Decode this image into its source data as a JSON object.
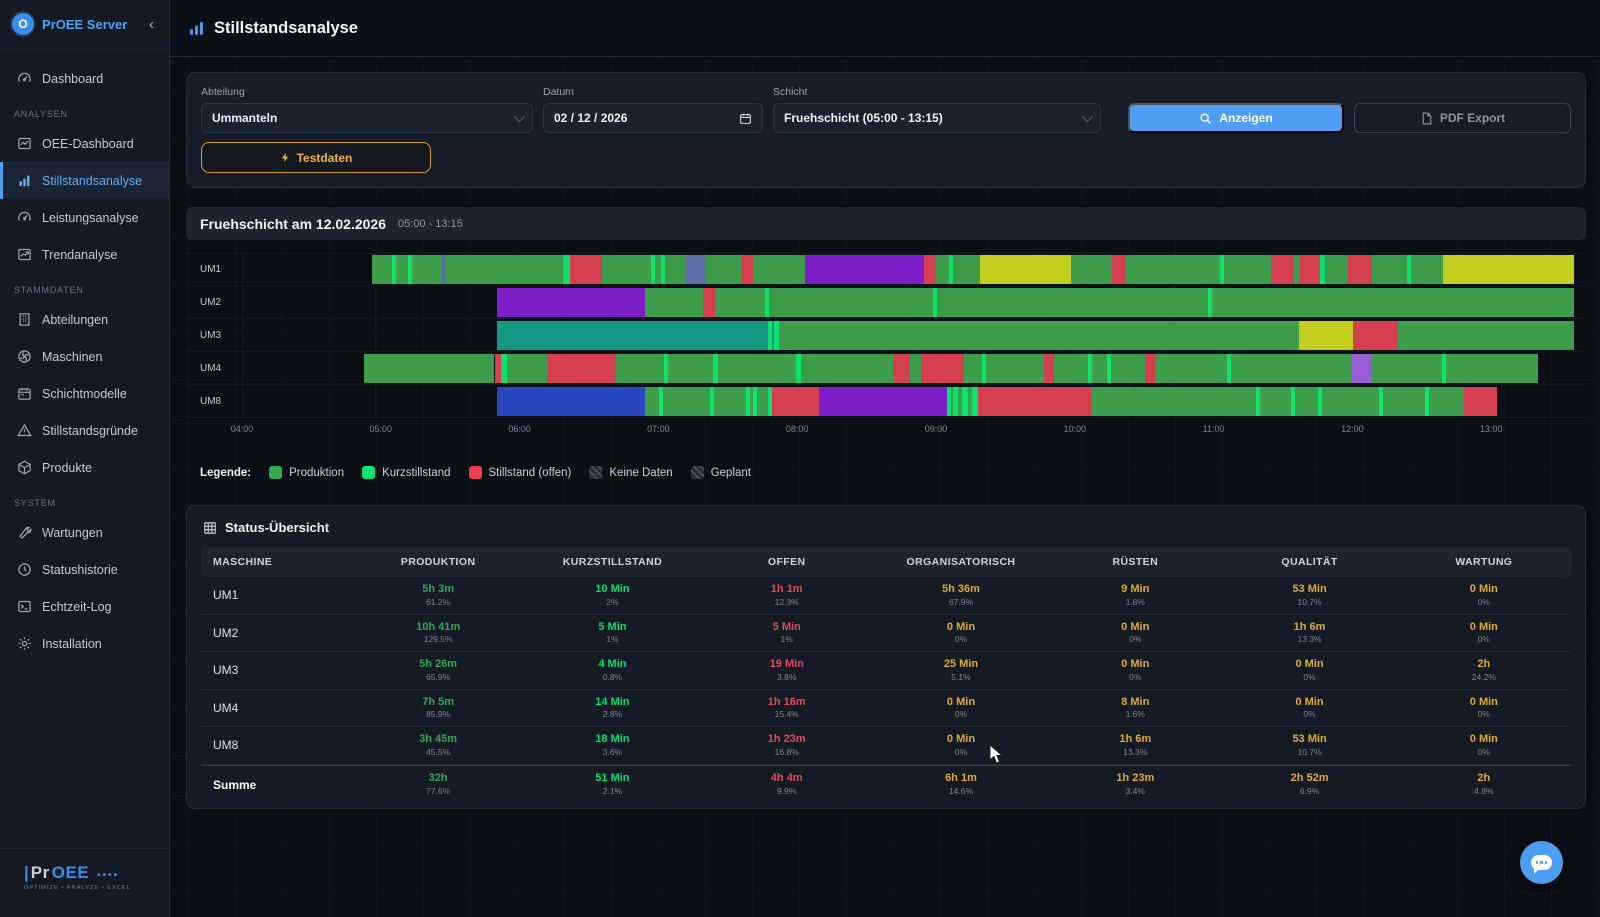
{
  "app": {
    "brand": "PrOEE Server",
    "collapse_glyph": "‹"
  },
  "sidebar": {
    "sections": [
      {
        "label": "",
        "items": [
          {
            "icon": "gauge",
            "label": "Dashboard",
            "active": false
          }
        ]
      },
      {
        "label": "ANALYSEN",
        "items": [
          {
            "icon": "line-chart",
            "label": "OEE-Dashboard",
            "active": false
          },
          {
            "icon": "bar-chart",
            "label": "Stillstandsanalyse",
            "active": true
          },
          {
            "icon": "gauge",
            "label": "Leistungsanalyse",
            "active": false
          },
          {
            "icon": "trend",
            "label": "Trendanalyse",
            "active": false
          }
        ]
      },
      {
        "label": "STAMMDATEN",
        "items": [
          {
            "icon": "building",
            "label": "Abteilungen",
            "active": false
          },
          {
            "icon": "fan",
            "label": "Maschinen",
            "active": false
          },
          {
            "icon": "calendar",
            "label": "Schichtmodelle",
            "active": false
          },
          {
            "icon": "warning",
            "label": "Stillstandsgründe",
            "active": false
          },
          {
            "icon": "box",
            "label": "Produkte",
            "active": false
          }
        ]
      },
      {
        "label": "SYSTEM",
        "items": [
          {
            "icon": "wrench",
            "label": "Wartungen",
            "active": false
          },
          {
            "icon": "clock",
            "label": "Statushistorie",
            "active": false
          },
          {
            "icon": "terminal",
            "label": "Echtzeit-Log",
            "active": false
          },
          {
            "icon": "gear",
            "label": "Installation",
            "active": false
          }
        ]
      }
    ],
    "footer": {
      "bar": "|",
      "name_gray": "Pr",
      "name_blue": "OEE",
      "dots": "••••",
      "tagline": "OPTIMIZE • ANALYZE • EXCEL"
    }
  },
  "header": {
    "title": "Stillstandsanalyse"
  },
  "filters": {
    "abteilung": {
      "label": "Abteilung",
      "value": "Ummanteln"
    },
    "datum": {
      "label": "Datum",
      "value": "02 / 12 / 2026"
    },
    "schicht": {
      "label": "Schicht",
      "value": "Fruehschicht (05:00 - 13:15)"
    },
    "anzeigen_label": "Anzeigen",
    "pdf_label": "PDF Export",
    "testdaten_label": "Testdaten"
  },
  "shift_header": {
    "title": "Fruehschicht am 12.02.2026",
    "times": "05:00 - 13:15"
  },
  "chart_data": {
    "type": "gantt-timeline",
    "time_window": {
      "start": "04:00",
      "end": "14:00"
    },
    "axis_ticks": [
      {
        "label": "04:00",
        "pct": 0
      },
      {
        "label": "05:00",
        "pct": 10
      },
      {
        "label": "06:00",
        "pct": 20
      },
      {
        "label": "07:00",
        "pct": 30
      },
      {
        "label": "08:00",
        "pct": 40
      },
      {
        "label": "09:00",
        "pct": 50
      },
      {
        "label": "10:00",
        "pct": 60
      },
      {
        "label": "11:00",
        "pct": 70
      },
      {
        "label": "12:00",
        "pct": 80
      },
      {
        "label": "13:00",
        "pct": 90
      }
    ],
    "status_colors": {
      "p": "#3d9d4a",
      "k": "#0be26e",
      "r": "#d4404f",
      "v": "#7d1ec8",
      "lv": "#9a5fd4",
      "t": "#14987f",
      "b": "#2946c0",
      "y": "#c2cf1f",
      "s": "#5e6da6"
    },
    "status_names": {
      "p": "produktion",
      "k": "kurzstillstand",
      "r": "stillstand-offen",
      "v": "violet-status",
      "lv": "light-violet-status",
      "t": "teal-status",
      "b": "blue-status",
      "y": "yellow-status",
      "s": "slate-status"
    },
    "machines": [
      {
        "name": "UM1",
        "segments": [
          [
            "p",
            10.7,
            12.2
          ],
          [
            "k",
            12.2,
            12.5
          ],
          [
            "p",
            12.5,
            13.4
          ],
          [
            "k",
            13.4,
            13.7
          ],
          [
            "p",
            13.7,
            15.9
          ],
          [
            "s",
            15.9,
            16.1
          ],
          [
            "p",
            16.1,
            24.9
          ],
          [
            "k",
            24.9,
            25.4
          ],
          [
            "r",
            25.4,
            27.8
          ],
          [
            "p",
            27.8,
            31.4
          ],
          [
            "k",
            31.4,
            31.7
          ],
          [
            "p",
            31.7,
            32.2
          ],
          [
            "k",
            32.2,
            32.5
          ],
          [
            "p",
            32.5,
            34.0
          ],
          [
            "s",
            34.0,
            35.5
          ],
          [
            "p",
            35.5,
            38.2
          ],
          [
            "r",
            38.2,
            39.0
          ],
          [
            "p",
            39.0,
            42.9
          ],
          [
            "v",
            42.9,
            51.7
          ],
          [
            "r",
            51.7,
            52.6
          ],
          [
            "p",
            52.6,
            53.6
          ],
          [
            "k",
            53.6,
            53.9
          ],
          [
            "p",
            53.9,
            55.9
          ],
          [
            "y",
            55.9,
            62.6
          ],
          [
            "p",
            62.6,
            65.7
          ],
          [
            "r",
            65.7,
            66.7
          ],
          [
            "p",
            66.7,
            73.7
          ],
          [
            "k",
            73.7,
            74.0
          ],
          [
            "p",
            74.0,
            77.5
          ],
          [
            "r",
            77.5,
            79.2
          ],
          [
            "p",
            79.2,
            79.6
          ],
          [
            "r",
            79.6,
            81.1
          ],
          [
            "k",
            81.1,
            81.5
          ],
          [
            "p",
            81.5,
            83.1
          ],
          [
            "r",
            83.1,
            85.0
          ],
          [
            "p",
            85.0,
            87.6
          ],
          [
            "k",
            87.6,
            87.9
          ],
          [
            "p",
            87.9,
            90.3
          ],
          [
            "y",
            90.3,
            100
          ]
        ]
      },
      {
        "name": "UM2",
        "segments": [
          [
            "v",
            20.0,
            31.0
          ],
          [
            "p",
            31.0,
            35.3
          ],
          [
            "r",
            35.3,
            36.2
          ],
          [
            "p",
            36.2,
            39.9
          ],
          [
            "k",
            39.9,
            40.2
          ],
          [
            "p",
            40.2,
            52.4
          ],
          [
            "k",
            52.4,
            52.7
          ],
          [
            "p",
            52.7,
            72.8
          ],
          [
            "k",
            72.8,
            73.1
          ],
          [
            "p",
            73.1,
            100
          ]
        ]
      },
      {
        "name": "UM3",
        "segments": [
          [
            "t",
            20.0,
            40.1
          ],
          [
            "k",
            40.1,
            40.4
          ],
          [
            "t",
            40.4,
            40.6
          ],
          [
            "k",
            40.6,
            40.9
          ],
          [
            "p",
            40.9,
            79.6
          ],
          [
            "y",
            79.6,
            83.6
          ],
          [
            "r",
            83.6,
            86.9
          ],
          [
            "p",
            86.9,
            100
          ]
        ]
      },
      {
        "name": "UM4",
        "segments": [
          [
            "p",
            10.1,
            19.8
          ],
          [
            "r",
            19.8,
            20.3
          ],
          [
            "k",
            20.3,
            20.7
          ],
          [
            "p",
            20.7,
            23.7
          ],
          [
            "r",
            23.7,
            28.8
          ],
          [
            "p",
            28.8,
            32.4
          ],
          [
            "k",
            32.4,
            32.7
          ],
          [
            "p",
            32.7,
            36.0
          ],
          [
            "k",
            36.0,
            36.4
          ],
          [
            "p",
            36.4,
            42.2
          ],
          [
            "k",
            42.2,
            42.6
          ],
          [
            "p",
            42.6,
            49.4
          ],
          [
            "r",
            49.4,
            50.7
          ],
          [
            "p",
            50.7,
            51.5
          ],
          [
            "r",
            51.5,
            54.7
          ],
          [
            "p",
            54.7,
            56.0
          ],
          [
            "k",
            56.0,
            56.3
          ],
          [
            "p",
            56.3,
            60.6
          ],
          [
            "r",
            60.6,
            61.4
          ],
          [
            "p",
            61.4,
            63.9
          ],
          [
            "k",
            63.9,
            64.2
          ],
          [
            "p",
            64.2,
            65.3
          ],
          [
            "k",
            65.3,
            65.6
          ],
          [
            "p",
            65.6,
            68.1
          ],
          [
            "r",
            68.1,
            68.9
          ],
          [
            "p",
            68.9,
            74.2
          ],
          [
            "k",
            74.2,
            74.5
          ],
          [
            "p",
            74.5,
            83.5
          ],
          [
            "lv",
            83.5,
            85.0
          ],
          [
            "p",
            85.0,
            90.2
          ],
          [
            "k",
            90.2,
            90.5
          ],
          [
            "p",
            90.5,
            97.3
          ]
        ]
      },
      {
        "name": "UM8",
        "segments": [
          [
            "b",
            20.0,
            31.0
          ],
          [
            "p",
            31.0,
            32.0
          ],
          [
            "k",
            32.0,
            32.3
          ],
          [
            "p",
            32.3,
            35.8
          ],
          [
            "k",
            35.8,
            36.1
          ],
          [
            "p",
            36.1,
            38.5
          ],
          [
            "k",
            38.5,
            38.8
          ],
          [
            "p",
            38.8,
            39.0
          ],
          [
            "k",
            39.0,
            39.3
          ],
          [
            "p",
            39.3,
            40.1
          ],
          [
            "k",
            40.1,
            40.4
          ],
          [
            "r",
            40.4,
            43.9
          ],
          [
            "v",
            43.9,
            53.4
          ],
          [
            "k",
            53.4,
            53.7
          ],
          [
            "p",
            53.7,
            53.9
          ],
          [
            "k",
            53.9,
            54.2
          ],
          [
            "p",
            54.2,
            54.5
          ],
          [
            "k",
            54.5,
            55.0
          ],
          [
            "p",
            55.0,
            55.3
          ],
          [
            "k",
            55.3,
            55.7
          ],
          [
            "r",
            55.7,
            64.1
          ],
          [
            "p",
            64.1,
            76.4
          ],
          [
            "k",
            76.4,
            76.7
          ],
          [
            "p",
            76.7,
            79.0
          ],
          [
            "k",
            79.0,
            79.3
          ],
          [
            "p",
            79.3,
            81.0
          ],
          [
            "k",
            81.0,
            81.3
          ],
          [
            "p",
            81.3,
            85.5
          ],
          [
            "k",
            85.5,
            85.8
          ],
          [
            "p",
            85.8,
            88.9
          ],
          [
            "k",
            88.9,
            89.2
          ],
          [
            "p",
            89.2,
            91.8
          ],
          [
            "r",
            91.8,
            94.3
          ]
        ]
      }
    ]
  },
  "legend": {
    "title": "Legende:",
    "items": [
      {
        "label": "Produktion",
        "swatch": "solid",
        "color": "#2fa84e"
      },
      {
        "label": "Kurzstillstand",
        "swatch": "solid",
        "color": "#00e573"
      },
      {
        "label": "Stillstand (offen)",
        "swatch": "solid",
        "color": "#e8404f"
      },
      {
        "label": "Keine Daten",
        "swatch": "hatch",
        "color": ""
      },
      {
        "label": "Geplant",
        "swatch": "hatch",
        "color": ""
      }
    ]
  },
  "table": {
    "title": "Status-Übersicht",
    "columns": [
      "MASCHINE",
      "PRODUKTION",
      "KURZSTILLSTAND",
      "OFFEN",
      "ORGANISATORISCH",
      "RÜSTEN",
      "QUALITÄT",
      "WARTUNG"
    ],
    "column_value_colors": [
      "#35a457",
      "#00df72",
      "#e14b5a",
      "#dfa92f",
      "#dfa92f",
      "#dfa92f",
      "#dfa92f"
    ],
    "rows": [
      {
        "machine": "UM1",
        "sum": false,
        "cells": [
          [
            "5h 3m",
            "61.2%"
          ],
          [
            "10 Min",
            "2%"
          ],
          [
            "1h 1m",
            "12.3%"
          ],
          [
            "5h 36m",
            "67.9%"
          ],
          [
            "9 Min",
            "1.8%"
          ],
          [
            "53 Min",
            "10.7%"
          ],
          [
            "0 Min",
            "0%"
          ]
        ]
      },
      {
        "machine": "UM2",
        "sum": false,
        "cells": [
          [
            "10h 41m",
            "129.5%"
          ],
          [
            "5 Min",
            "1%"
          ],
          [
            "5 Min",
            "1%"
          ],
          [
            "0 Min",
            "0%"
          ],
          [
            "0 Min",
            "0%"
          ],
          [
            "1h 6m",
            "13.3%"
          ],
          [
            "0 Min",
            "0%"
          ]
        ]
      },
      {
        "machine": "UM3",
        "sum": false,
        "cells": [
          [
            "5h 26m",
            "65.9%"
          ],
          [
            "4 Min",
            "0.8%"
          ],
          [
            "19 Min",
            "3.8%"
          ],
          [
            "25 Min",
            "5.1%"
          ],
          [
            "0 Min",
            "0%"
          ],
          [
            "0 Min",
            "0%"
          ],
          [
            "2h",
            "24.2%"
          ]
        ]
      },
      {
        "machine": "UM4",
        "sum": false,
        "cells": [
          [
            "7h 5m",
            "85.9%"
          ],
          [
            "14 Min",
            "2.8%"
          ],
          [
            "1h 16m",
            "15.4%"
          ],
          [
            "0 Min",
            "0%"
          ],
          [
            "8 Min",
            "1.6%"
          ],
          [
            "0 Min",
            "0%"
          ],
          [
            "0 Min",
            "0%"
          ]
        ]
      },
      {
        "machine": "UM8",
        "sum": false,
        "cells": [
          [
            "3h 45m",
            "45.5%"
          ],
          [
            "18 Min",
            "3.6%"
          ],
          [
            "1h 23m",
            "16.8%"
          ],
          [
            "0 Min",
            "0%"
          ],
          [
            "1h 6m",
            "13.3%"
          ],
          [
            "53 Min",
            "10.7%"
          ],
          [
            "0 Min",
            "0%"
          ]
        ]
      },
      {
        "machine": "Summe",
        "sum": true,
        "cells": [
          [
            "32h",
            "77.6%"
          ],
          [
            "51 Min",
            "2.1%"
          ],
          [
            "4h 4m",
            "9.9%"
          ],
          [
            "6h 1m",
            "14.6%"
          ],
          [
            "1h 23m",
            "3.4%"
          ],
          [
            "2h 52m",
            "6.9%"
          ],
          [
            "2h",
            "4.8%"
          ]
        ]
      }
    ]
  }
}
